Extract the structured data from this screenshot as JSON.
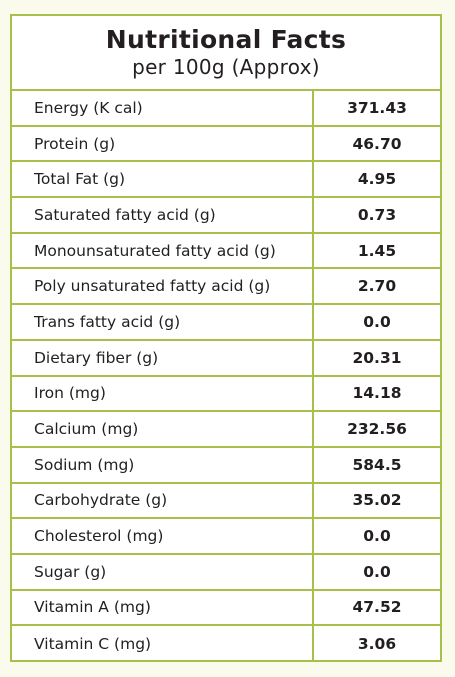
{
  "header": {
    "title": "Nutritional Facts",
    "subtitle": "per 100g (Approx)"
  },
  "colors": {
    "border": "#a6c04a",
    "background": "#fafbed",
    "text": "#231f20"
  },
  "rows": [
    {
      "label": "Energy (K cal)",
      "value": "371.43"
    },
    {
      "label": "Protein (g)",
      "value": "46.70"
    },
    {
      "label": "Total Fat (g)",
      "value": "4.95"
    },
    {
      "label": "Saturated fatty acid (g)",
      "value": "0.73"
    },
    {
      "label": "Monounsaturated fatty acid (g)",
      "value": "1.45"
    },
    {
      "label": "Poly unsaturated fatty acid (g)",
      "value": "2.70"
    },
    {
      "label": "Trans fatty acid (g)",
      "value": "0.0"
    },
    {
      "label": "Dietary fiber (g)",
      "value": "20.31"
    },
    {
      "label": "Iron (mg)",
      "value": "14.18"
    },
    {
      "label": "Calcium (mg)",
      "value": "232.56"
    },
    {
      "label": "Sodium (mg)",
      "value": "584.5"
    },
    {
      "label": "Carbohydrate (g)",
      "value": "35.02"
    },
    {
      "label": "Cholesterol (mg)",
      "value": "0.0"
    },
    {
      "label": "Sugar (g)",
      "value": "0.0"
    },
    {
      "label": "Vitamin A (mg)",
      "value": "47.52"
    },
    {
      "label": "Vitamin C (mg)",
      "value": "3.06"
    }
  ]
}
